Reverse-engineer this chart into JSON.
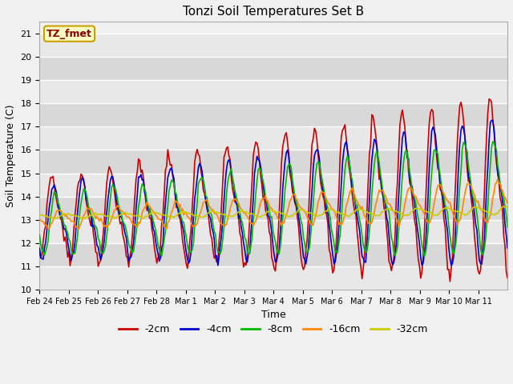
{
  "title": "Tonzi Soil Temperatures Set B",
  "xlabel": "Time",
  "ylabel": "Soil Temperature (C)",
  "ylim": [
    10.0,
    21.5
  ],
  "yticks": [
    10.0,
    11.0,
    12.0,
    13.0,
    14.0,
    15.0,
    16.0,
    17.0,
    18.0,
    19.0,
    20.0,
    21.0
  ],
  "bg_color": "#f0f0f0",
  "plot_bg_color": "#f0f0f0",
  "legend_label": "TZ_fmet",
  "legend_box_color": "#ffffc0",
  "legend_box_edge": "#c8a000",
  "xtick_labels": [
    "Feb 24",
    "Feb 25",
    "Feb 26",
    "Feb 27",
    "Feb 28",
    "Mar 1",
    "Mar 2",
    "Mar 3",
    "Mar 4",
    "Mar 5",
    "Mar 6",
    "Mar 7",
    "Mar 8",
    "Mar 9",
    "Mar 10",
    "Mar 11"
  ],
  "series": {
    "-2cm": {
      "color": "#cc0000",
      "lw": 1.2
    },
    "-4cm": {
      "color": "#0000cc",
      "lw": 1.2
    },
    "-8cm": {
      "color": "#00bb00",
      "lw": 1.2
    },
    "-16cm": {
      "color": "#ff8800",
      "lw": 1.2
    },
    "-32cm": {
      "color": "#cccc00",
      "lw": 1.2
    }
  }
}
